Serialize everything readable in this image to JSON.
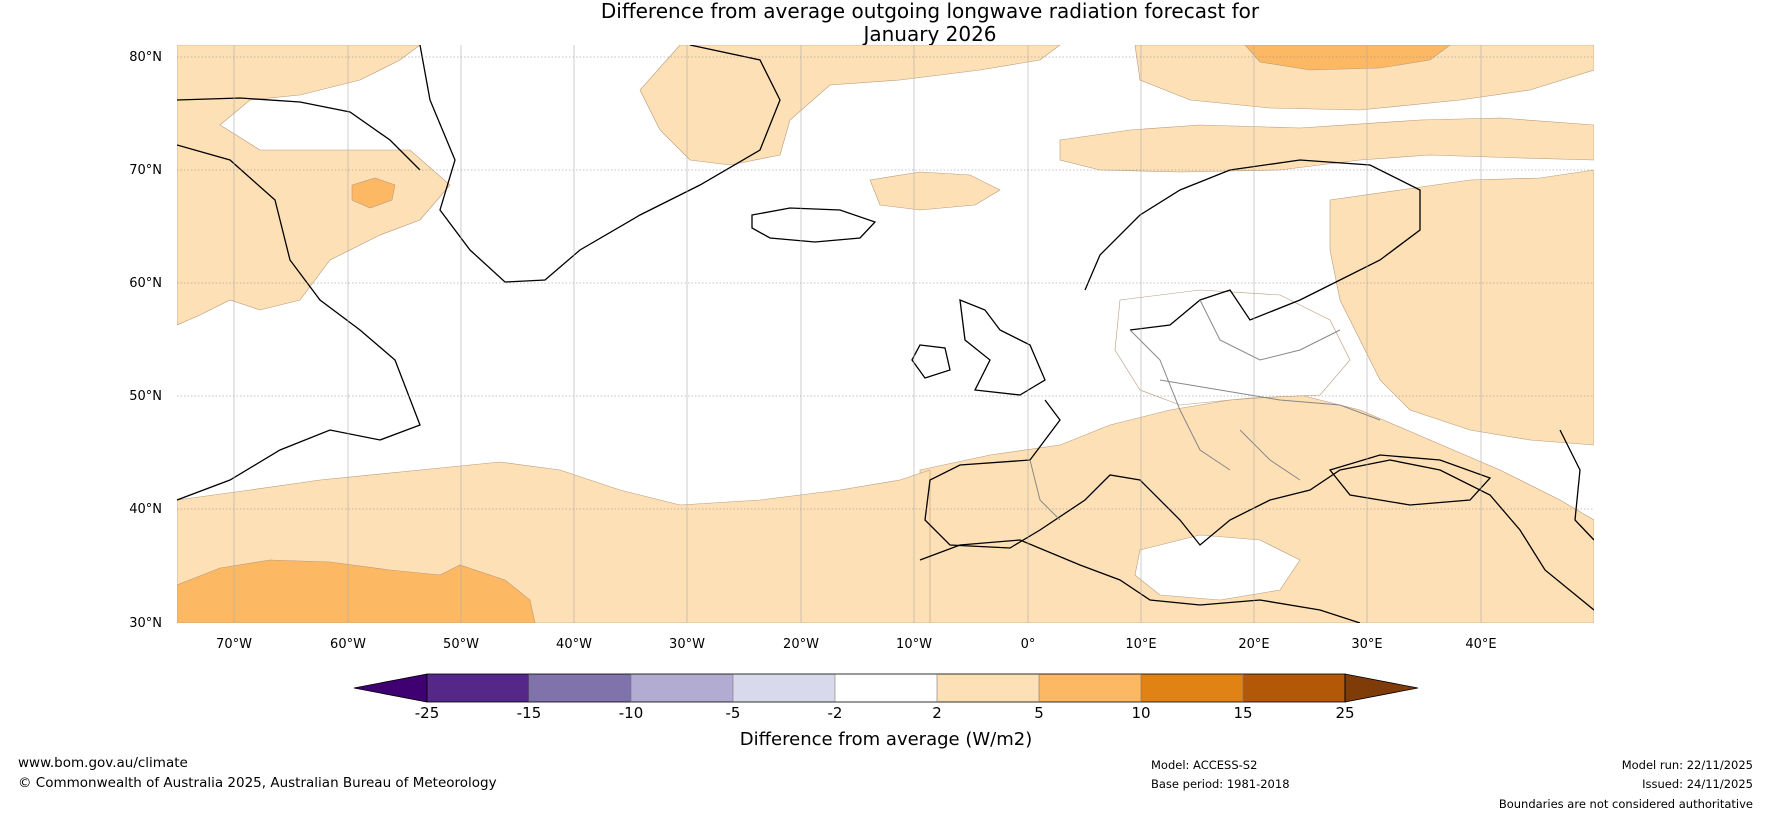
{
  "title_line1": "Difference from average outgoing longwave radiation forecast for",
  "title_line2": "January 2026",
  "lat_labels": [
    "80°N",
    "70°N",
    "60°N",
    "50°N",
    "40°N",
    "30°N"
  ],
  "lon_labels": [
    "70°W",
    "60°W",
    "50°W",
    "40°W",
    "30°W",
    "20°W",
    "10°W",
    "0°",
    "10°E",
    "20°E",
    "30°E",
    "40°E"
  ],
  "colorbar": {
    "ticks": [
      "-25",
      "-15",
      "-10",
      "-5",
      "-2",
      "2",
      "5",
      "10",
      "15",
      "25"
    ],
    "colors": [
      "#3f0071",
      "#542788",
      "#8073ac",
      "#b2abd2",
      "#d8daeb",
      "#ffffff",
      "#fee0b6",
      "#fdb863",
      "#e08214",
      "#b35806",
      "#7f3b08"
    ],
    "label": "Difference from average (W/m2)"
  },
  "footer": {
    "website": "www.bom.gov.au/climate",
    "copyright": "© Commonwealth of Australia 2025, Australian Bureau of Meteorology",
    "model": "Model: ACCESS-S2",
    "base_period": "Base period: 1981-2018",
    "model_run": "Model run: 22/11/2025",
    "issued": "Issued: 24/11/2025",
    "disclaimer": "Boundaries are not considered authoritative"
  }
}
